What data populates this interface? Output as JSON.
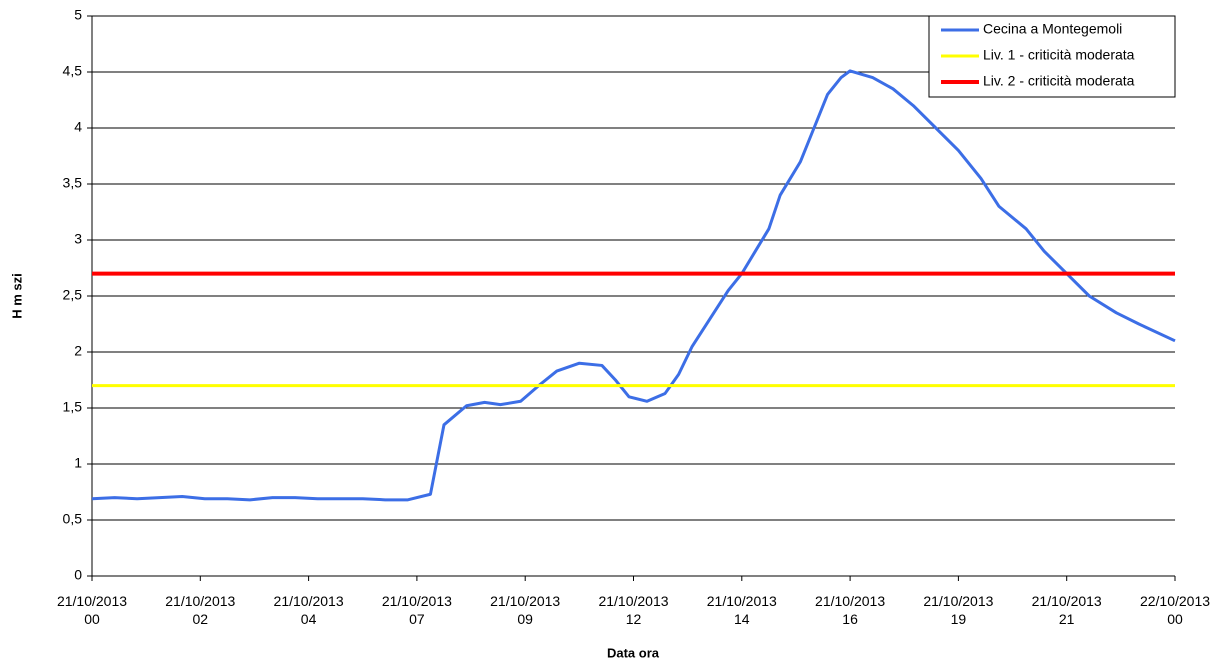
{
  "chart_data": {
    "type": "line",
    "xlabel": "Data ora",
    "ylabel": "H m szi",
    "xlim": [
      0,
      24
    ],
    "ylim": [
      0,
      5
    ],
    "xticks": [
      {
        "value": 0,
        "label": "21/10/2013\n00"
      },
      {
        "value": 2.4,
        "label": "21/10/2013\n02"
      },
      {
        "value": 4.8,
        "label": "21/10/2013\n04"
      },
      {
        "value": 7.2,
        "label": "21/10/2013\n07"
      },
      {
        "value": 9.6,
        "label": "21/10/2013\n09"
      },
      {
        "value": 12,
        "label": "21/10/2013\n12"
      },
      {
        "value": 14.4,
        "label": "21/10/2013\n14"
      },
      {
        "value": 16.8,
        "label": "21/10/2013\n16"
      },
      {
        "value": 19.2,
        "label": "21/10/2013\n19"
      },
      {
        "value": 21.6,
        "label": "21/10/2013\n21"
      },
      {
        "value": 24,
        "label": "22/10/2013\n00"
      }
    ],
    "yticks": [
      0,
      {
        "value": 0.5,
        "label": "0,5"
      },
      1,
      {
        "value": 1.5,
        "label": "1,5"
      },
      2,
      {
        "value": 2.5,
        "label": "2,5"
      },
      3,
      {
        "value": 3.5,
        "label": "3,5"
      },
      4,
      {
        "value": 4.5,
        "label": "4,5"
      },
      5
    ],
    "grid": true,
    "legend": "top-right",
    "series": [
      {
        "name": "Cecina a Montegemoli",
        "color": "#3c6ee6",
        "x": [
          0,
          0.5,
          1,
          1.5,
          2,
          2.5,
          3,
          3.5,
          4,
          4.5,
          5,
          5.5,
          6,
          6.5,
          7,
          7.5,
          7.8,
          8.3,
          8.7,
          9.05,
          9.5,
          9.9,
          10.3,
          10.8,
          11.3,
          11.6,
          11.9,
          12.3,
          12.7,
          13,
          13.3,
          13.7,
          14.1,
          14.4,
          14.7,
          15,
          15.25,
          15.7,
          16,
          16.3,
          16.6,
          16.8,
          17.3,
          17.75,
          18.2,
          18.7,
          19.2,
          19.7,
          20.1,
          20.7,
          21.1,
          21.6,
          22.1,
          22.7,
          23.2,
          24
        ],
        "values": [
          0.69,
          0.7,
          0.69,
          0.7,
          0.71,
          0.69,
          0.69,
          0.68,
          0.7,
          0.7,
          0.69,
          0.69,
          0.69,
          0.68,
          0.68,
          0.73,
          1.35,
          1.52,
          1.55,
          1.53,
          1.56,
          1.7,
          1.83,
          1.9,
          1.88,
          1.75,
          1.6,
          1.56,
          1.63,
          1.8,
          2.05,
          2.3,
          2.55,
          2.7,
          2.9,
          3.1,
          3.4,
          3.7,
          4.0,
          4.3,
          4.45,
          4.51,
          4.45,
          4.35,
          4.2,
          4.0,
          3.8,
          3.55,
          3.3,
          3.1,
          2.9,
          2.7,
          2.5,
          2.35,
          2.25,
          2.1
        ]
      },
      {
        "name": "Liv. 1 - criticità moderata",
        "color": "#ffff00",
        "x": [
          0,
          24
        ],
        "values": [
          1.7,
          1.7
        ]
      },
      {
        "name": "Liv. 2 - criticità moderata",
        "color": "#ff0000",
        "x": [
          0,
          24
        ],
        "values": [
          2.7,
          2.7
        ]
      }
    ]
  }
}
